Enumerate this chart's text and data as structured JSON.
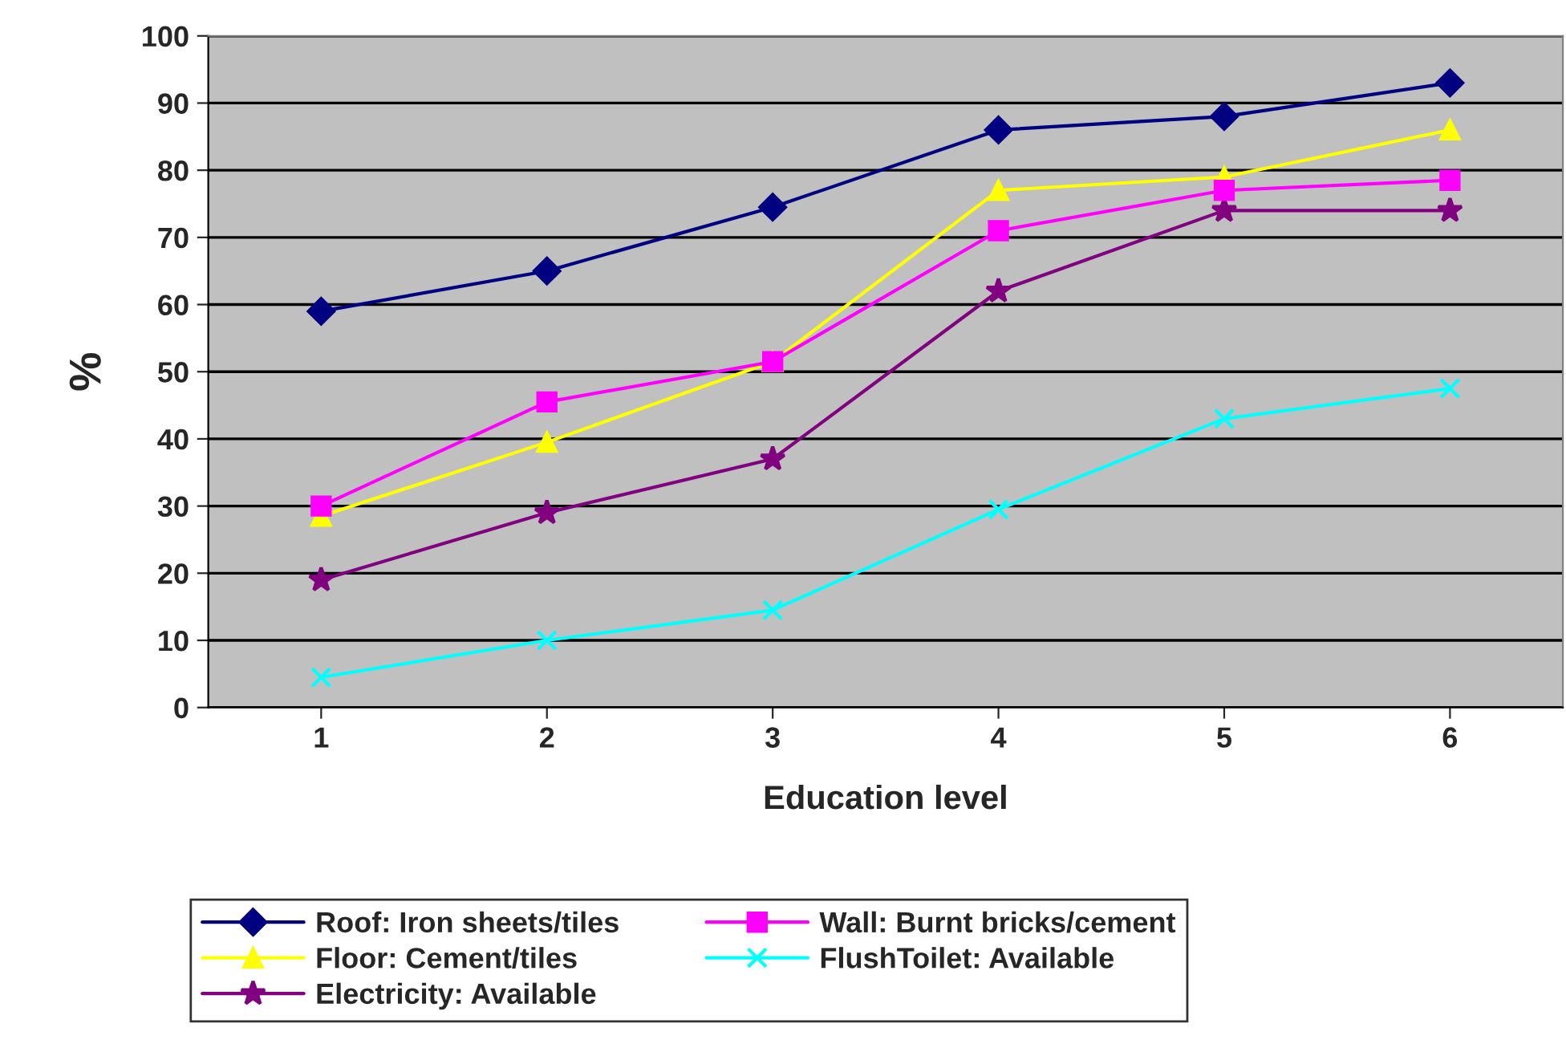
{
  "chart_data": {
    "type": "line",
    "xlabel": "Education level",
    "ylabel": "%",
    "categories": [
      "1",
      "2",
      "3",
      "4",
      "5",
      "6"
    ],
    "series": [
      {
        "name": "Roof: Iron sheets/tiles",
        "color": "#000080",
        "marker": "diamond",
        "values": [
          59,
          65,
          74.5,
          86,
          88,
          93
        ]
      },
      {
        "name": "Wall: Burnt bricks/cement",
        "color": "#ff00ff",
        "marker": "square",
        "values": [
          30,
          45.5,
          51.5,
          71,
          77,
          78.5
        ]
      },
      {
        "name": "Floor: Cement/tiles",
        "color": "#ffff00",
        "marker": "triangle",
        "values": [
          28.5,
          39.5,
          51.5,
          77,
          79,
          86
        ]
      },
      {
        "name": "FlushToilet: Available",
        "color": "#00ffff",
        "marker": "cross",
        "values": [
          4.5,
          10,
          14.5,
          29.5,
          43,
          47.5
        ]
      },
      {
        "name": "Electricity: Available",
        "color": "#800080",
        "marker": "star",
        "values": [
          19,
          29,
          37,
          62,
          74,
          74
        ]
      }
    ],
    "ylim": [
      0,
      100
    ],
    "yticks": [
      0,
      10,
      20,
      30,
      40,
      50,
      60,
      70,
      80,
      90,
      100
    ],
    "grid": "y",
    "legend": "bottom",
    "line_style": "solid"
  }
}
